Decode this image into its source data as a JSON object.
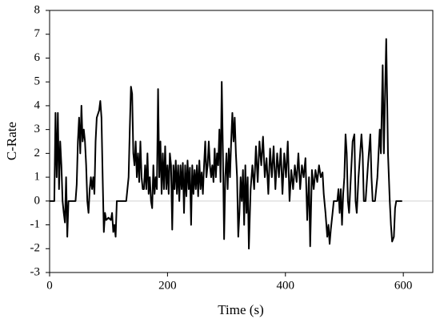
{
  "chart_data": {
    "type": "line",
    "x_label": "Time (s)",
    "y_label": "C-Rate",
    "color": "#000000",
    "xlim": [
      0,
      650
    ],
    "xticks": [
      0,
      200,
      400,
      600
    ],
    "ylim": [
      -3,
      8
    ],
    "yticks": [
      -3,
      -2,
      -1,
      0,
      1,
      2,
      3,
      4,
      5,
      6,
      7,
      8
    ],
    "x": [
      0,
      8,
      10,
      12,
      14,
      16,
      18,
      20,
      22,
      24,
      26,
      28,
      30,
      32,
      44,
      46,
      48,
      50,
      52,
      54,
      56,
      58,
      60,
      62,
      64,
      66,
      68,
      70,
      72,
      74,
      76,
      78,
      80,
      84,
      86,
      88,
      90,
      92,
      94,
      96,
      100,
      104,
      106,
      108,
      110,
      112,
      114,
      130,
      134,
      136,
      138,
      140,
      142,
      144,
      146,
      148,
      150,
      152,
      154,
      156,
      158,
      160,
      162,
      164,
      166,
      168,
      170,
      172,
      174,
      176,
      178,
      180,
      182,
      184,
      186,
      188,
      190,
      192,
      194,
      196,
      198,
      200,
      202,
      204,
      206,
      208,
      210,
      212,
      214,
      216,
      218,
      220,
      222,
      224,
      226,
      228,
      230,
      232,
      234,
      236,
      238,
      240,
      242,
      244,
      246,
      248,
      250,
      252,
      254,
      256,
      258,
      260,
      262,
      264,
      266,
      268,
      270,
      272,
      274,
      276,
      278,
      280,
      282,
      284,
      286,
      288,
      290,
      292,
      294,
      296,
      298,
      300,
      302,
      304,
      306,
      308,
      310,
      312,
      314,
      316,
      318,
      320,
      322,
      324,
      326,
      328,
      330,
      332,
      334,
      336,
      338,
      341,
      344,
      347,
      350,
      353,
      356,
      359,
      362,
      365,
      368,
      371,
      374,
      377,
      380,
      383,
      386,
      389,
      392,
      395,
      398,
      401,
      404,
      407,
      410,
      413,
      416,
      419,
      422,
      425,
      428,
      431,
      434,
      437,
      440,
      442,
      445,
      448,
      451,
      454,
      457,
      460,
      463,
      465,
      468,
      471,
      473,
      475,
      477,
      480,
      482,
      488,
      490,
      492,
      494,
      496,
      498,
      500,
      502,
      504,
      506,
      508,
      510,
      514,
      517,
      519,
      521,
      524,
      529,
      531,
      533,
      536,
      540,
      544,
      546,
      548,
      552,
      556,
      560,
      562,
      565,
      567,
      571,
      574,
      577,
      579,
      581,
      584,
      586,
      588,
      598
    ],
    "values": [
      0,
      0,
      3.7,
      1,
      3.7,
      0.5,
      2.5,
      1.5,
      0,
      -0.5,
      -0.9,
      1,
      -1.5,
      0,
      0,
      0.7,
      2.5,
      3.5,
      2,
      4,
      2.5,
      3,
      2.5,
      1.5,
      0,
      -0.5,
      0.5,
      1,
      0.5,
      1,
      0.3,
      2.5,
      3.5,
      3.8,
      4.2,
      3.5,
      1,
      -1.3,
      -0.5,
      -0.8,
      -0.7,
      -0.8,
      -0.5,
      -1.3,
      -1,
      -1.5,
      0,
      0,
      1,
      3,
      4.8,
      4.5,
      2,
      1.5,
      2.5,
      1,
      2,
      0.8,
      2.5,
      1,
      0.5,
      0.5,
      1.5,
      0.5,
      2,
      0.3,
      1,
      0,
      -0.3,
      1.5,
      0.3,
      1,
      0.5,
      4.7,
      1,
      2.5,
      0.3,
      2,
      0.5,
      2.3,
      0.5,
      1.5,
      0.3,
      2,
      1.5,
      -1.2,
      1.5,
      0.5,
      1.7,
      0.3,
      1.5,
      0,
      1.5,
      0.5,
      1.6,
      -0.5,
      1.5,
      0.2,
      1.7,
      0.5,
      1.4,
      -1,
      1.5,
      0.3,
      1.3,
      0.5,
      1.5,
      0.2,
      1.7,
      0.5,
      1.2,
      0.3,
      1.5,
      2.5,
      1,
      1.5,
      2.5,
      1.5,
      1,
      1.5,
      0.8,
      2.2,
      1,
      2,
      1.5,
      3,
      0.8,
      5,
      2,
      -1.6,
      1,
      2,
      0.5,
      2.2,
      1,
      2.5,
      3.7,
      2.5,
      3.5,
      2,
      1,
      -1.5,
      -0.5,
      1,
      0,
      1.3,
      -1,
      1.5,
      -0.5,
      1,
      -2,
      0.5,
      1.5,
      0.5,
      2.3,
      0.8,
      2.5,
      1.5,
      2.7,
      1,
      1.8,
      0.3,
      2.2,
      1,
      2.3,
      0.5,
      2,
      1,
      2.2,
      0.3,
      2,
      1,
      2.5,
      0,
      1.3,
      0.5,
      1.5,
      0.8,
      2,
      0.5,
      1.5,
      1,
      1.8,
      -0.8,
      1,
      -1.9,
      1.3,
      0.5,
      1.3,
      0.8,
      1.5,
      1,
      1.2,
      0.3,
      -0.5,
      -1.5,
      -1,
      -1.8,
      -1.2,
      -0.5,
      0,
      0,
      0.5,
      -0.5,
      0.5,
      -1,
      0.3,
      1,
      2.8,
      2,
      0,
      -0.5,
      0.5,
      2.5,
      2.8,
      0,
      -0.5,
      1,
      2.8,
      2,
      0,
      0,
      1.5,
      2.8,
      1,
      0,
      0,
      1,
      3,
      2,
      5.7,
      2,
      6.8,
      2,
      0,
      -1,
      -1.7,
      -1.5,
      -0.3,
      0,
      0
    ]
  }
}
